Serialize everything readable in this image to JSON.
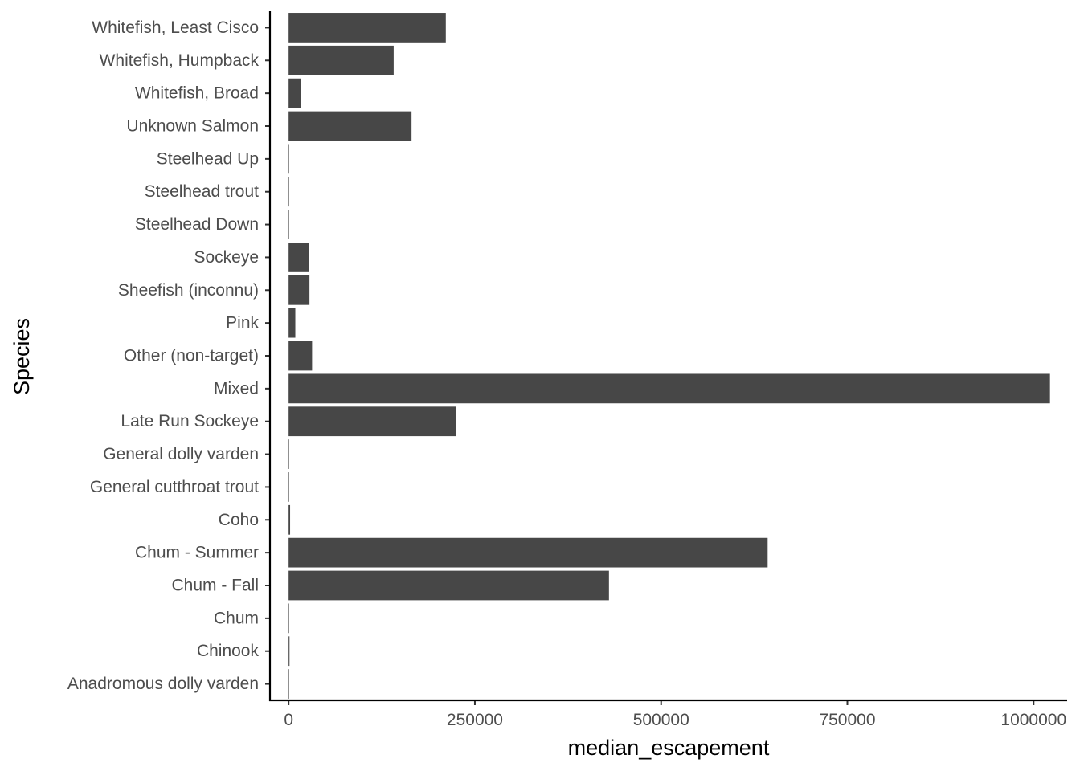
{
  "chart_data": {
    "type": "bar",
    "orientation": "horizontal",
    "xlabel": "median_escapement",
    "ylabel": "Species",
    "xlim": [
      -25000,
      1045000
    ],
    "xticks": [
      0,
      250000,
      500000,
      750000,
      1000000
    ],
    "xtick_labels": [
      "0",
      "250000",
      "500000",
      "750000",
      "1000000"
    ],
    "grid": false,
    "legend": "none",
    "bar_color": "#474747",
    "categories": [
      "Anadromous dolly varden",
      "Chinook",
      "Chum",
      "Chum - Fall",
      "Chum - Summer",
      "Coho",
      "General cutthroat trout",
      "General dolly varden",
      "Late Run Sockeye",
      "Mixed",
      "Other (non-target)",
      "Pink",
      "Sheefish (inconnu)",
      "Sockeye",
      "Steelhead Down",
      "Steelhead trout",
      "Steelhead Up",
      "Unknown Salmon",
      "Whitefish, Broad",
      "Whitefish, Humpback",
      "Whitefish, Least Cisco"
    ],
    "values": [
      100,
      1200,
      300,
      430000,
      643000,
      2000,
      300,
      300,
      225000,
      1022000,
      31500,
      9000,
      28000,
      27000,
      300,
      500,
      100,
      165000,
      17000,
      141000,
      211000
    ]
  }
}
